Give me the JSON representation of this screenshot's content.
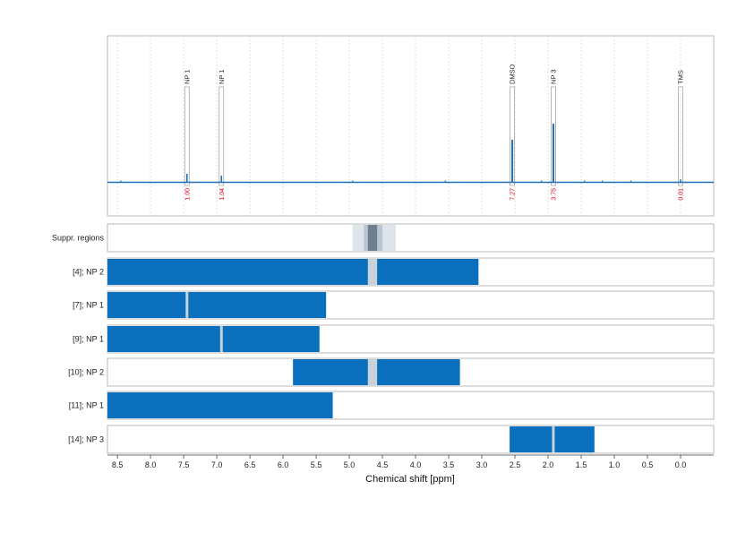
{
  "chart_data": {
    "type": "nmr_spectrum_with_region_bars",
    "xlabel": "Chemical shift [ppm]",
    "x_reversed": true,
    "xlim": [
      8.65,
      -0.5
    ],
    "xticks": [
      8.5,
      8.0,
      7.5,
      7.0,
      6.5,
      6.0,
      5.5,
      5.0,
      4.5,
      4.0,
      3.5,
      3.0,
      2.5,
      2.0,
      1.5,
      1.0,
      0.5,
      0.0
    ],
    "xtick_labels": [
      "8.5",
      "8.0",
      "7.5",
      "7.0",
      "6.5",
      "6.0",
      "5.5",
      "5.0",
      "4.5",
      "4.0",
      "3.5",
      "3.0",
      "2.5",
      "2.0",
      "1.5",
      "1.0",
      "0.5",
      "0.0"
    ],
    "grid": "vertical dotted",
    "colors": {
      "signal": "#1f6fb4",
      "bar": "#0a6fbd",
      "window": "#c9d2da",
      "integral": "#e2001a",
      "dark_band": "#6e7f8f"
    },
    "peaks": [
      {
        "label": "NP 1",
        "ppm": 7.45,
        "rel_height": 0.09,
        "integral": "1.00"
      },
      {
        "label": "NP 1",
        "ppm": 6.93,
        "rel_height": 0.07,
        "integral": "1.04"
      },
      {
        "label": "DMSO",
        "ppm": 2.54,
        "rel_height": 0.45,
        "integral": "7.27"
      },
      {
        "label": "NP 3",
        "ppm": 1.92,
        "rel_height": 0.62,
        "integral": "3.75"
      },
      {
        "label": "TMS",
        "ppm": 0.0,
        "rel_height": 0.03,
        "integral": "0.01"
      }
    ],
    "suppression_regions": {
      "label": "Suppr. regions",
      "outer": [
        4.95,
        4.3
      ],
      "inner": [
        4.78,
        4.5
      ],
      "core": [
        4.72,
        4.58
      ]
    },
    "rows": [
      {
        "label": "[4]; NP 2",
        "segments": [
          [
            8.65,
            4.72
          ],
          [
            4.58,
            3.05
          ]
        ],
        "gaps": [
          [
            4.72,
            4.58
          ]
        ]
      },
      {
        "label": "[7]; NP 1",
        "segments": [
          [
            8.65,
            7.47
          ],
          [
            7.43,
            5.35
          ]
        ],
        "gaps": [
          [
            7.47,
            7.43
          ]
        ]
      },
      {
        "label": "[9]; NP 1",
        "segments": [
          [
            8.65,
            6.95
          ],
          [
            6.91,
            5.45
          ]
        ],
        "gaps": [
          [
            6.95,
            6.91
          ]
        ]
      },
      {
        "label": "[10]; NP 2",
        "segments": [
          [
            5.85,
            4.72
          ],
          [
            4.58,
            3.33
          ]
        ],
        "gaps": [
          [
            4.72,
            4.58
          ]
        ]
      },
      {
        "label": "[11]; NP 1",
        "segments": [
          [
            8.65,
            5.25
          ]
        ],
        "gaps": []
      },
      {
        "label": "[14]; NP 3",
        "segments": [
          [
            2.58,
            1.94
          ],
          [
            1.9,
            1.3
          ]
        ],
        "gaps": [
          [
            1.94,
            1.9
          ]
        ]
      }
    ]
  }
}
